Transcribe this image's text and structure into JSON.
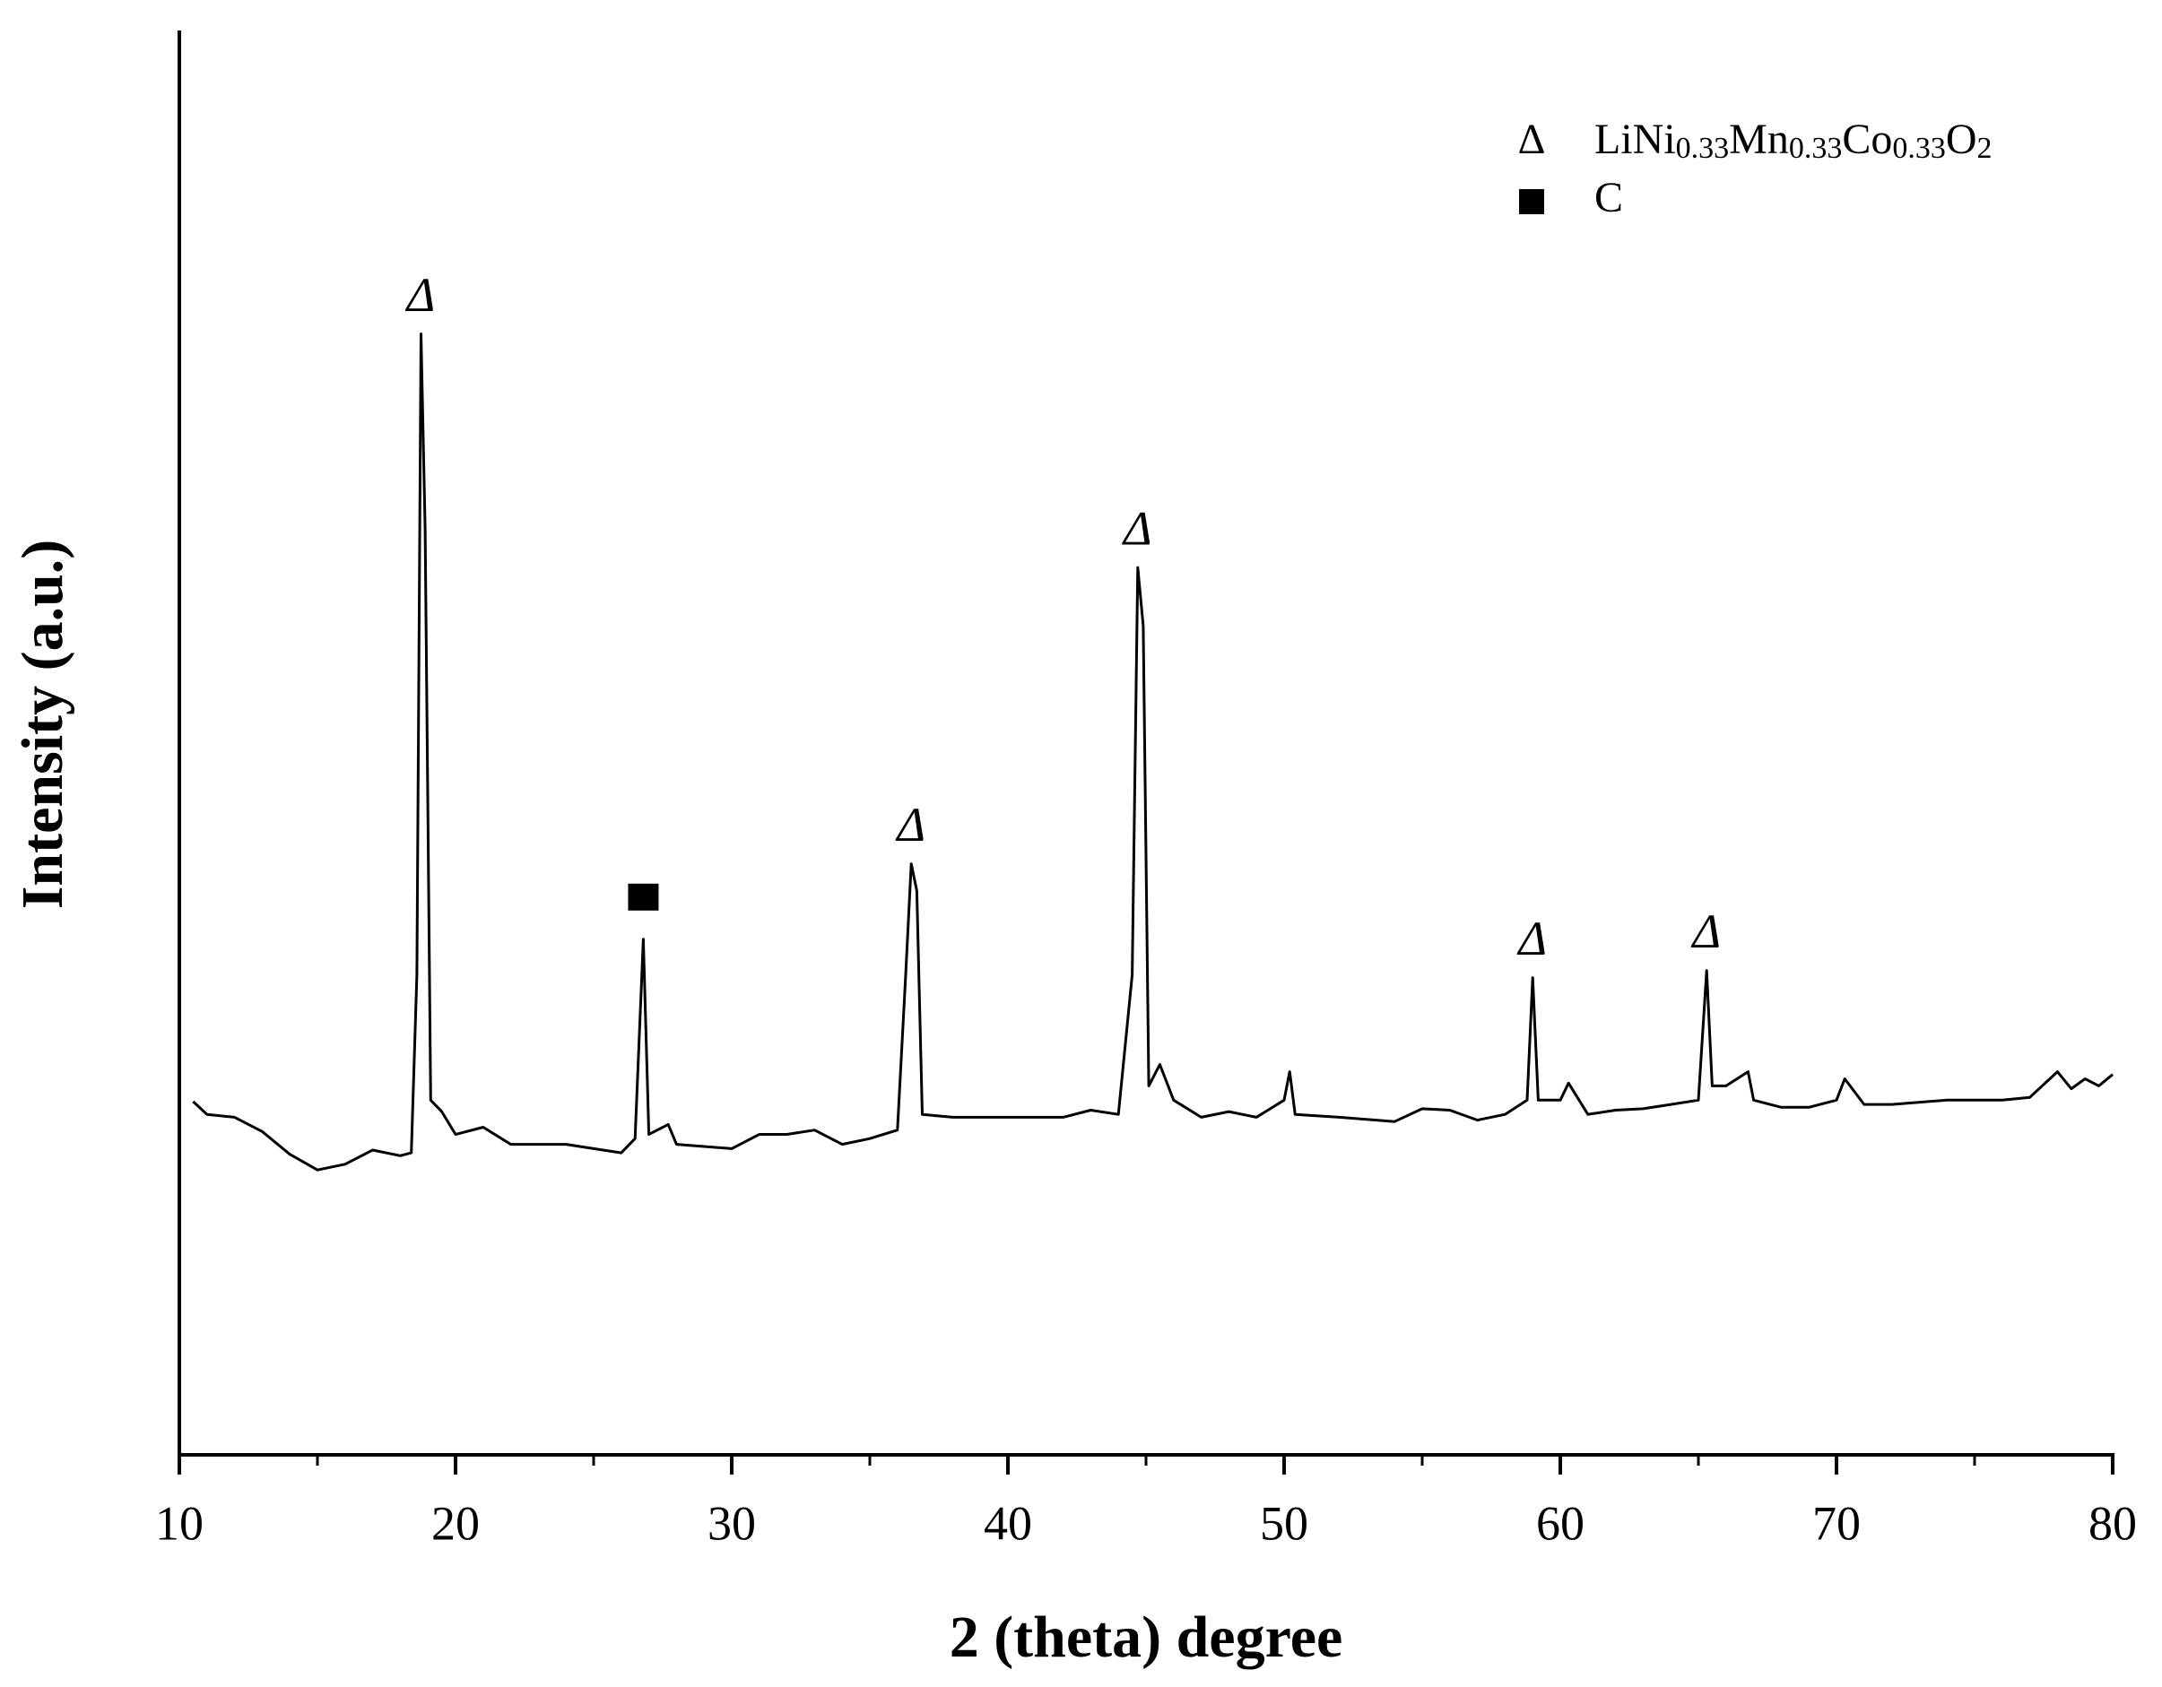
{
  "chart_data": {
    "type": "line",
    "xlabel": "2 (theta) degree",
    "ylabel": "Intensity (a.u.)",
    "xlim": [
      10,
      80
    ],
    "xticks": [
      10,
      20,
      30,
      40,
      50,
      60,
      70,
      80
    ],
    "xminorticks": [
      15,
      25,
      35,
      45,
      55,
      65,
      75
    ],
    "ylim": [
      0,
      100
    ],
    "color": "#000000",
    "x": [
      10.5,
      11,
      12,
      13,
      14,
      15,
      16,
      17,
      18,
      18.4,
      18.6,
      18.75,
      18.9,
      19.1,
      19.5,
      20,
      21,
      22,
      24,
      25,
      26,
      26.5,
      26.8,
      27.0,
      27.7,
      28,
      30,
      31,
      32,
      33,
      34,
      35,
      36,
      36.3,
      36.5,
      36.7,
      36.9,
      38,
      40,
      42,
      43,
      44,
      44.5,
      44.7,
      44.9,
      45.1,
      45.5,
      46,
      47,
      48,
      49,
      50,
      50.2,
      50.4,
      52,
      54,
      55,
      56,
      57,
      58,
      58.8,
      59.0,
      59.2,
      60,
      60.3,
      61,
      62,
      63,
      64,
      65,
      65.3,
      65.5,
      66,
      66.8,
      67,
      68,
      69,
      70,
      70.3,
      71,
      72,
      74,
      76,
      77,
      78,
      78.5,
      79,
      79.5,
      80
    ],
    "series": [
      {
        "values": [
          24.8,
          23.9,
          23.7,
          22.7,
          21.1,
          20.0,
          20.4,
          21.4,
          21.0,
          21.2,
          33.7,
          78.7,
          65.0,
          24.9,
          24.1,
          22.5,
          23.0,
          21.8,
          21.8,
          21.5,
          21.2,
          22.2,
          36.2,
          22.5,
          23.2,
          21.8,
          21.5,
          22.5,
          22.5,
          22.8,
          21.8,
          22.2,
          22.8,
          33.7,
          41.5,
          39.6,
          23.9,
          23.7,
          23.7,
          23.7,
          24.2,
          23.9,
          33.7,
          62.3,
          58.2,
          25.9,
          27.4,
          24.9,
          23.7,
          24.1,
          23.7,
          24.9,
          26.9,
          23.9,
          23.7,
          23.4,
          24.3,
          24.2,
          23.5,
          23.9,
          24.9,
          33.5,
          24.9,
          24.9,
          26.1,
          23.9,
          24.2,
          24.3,
          24.6,
          24.9,
          34.0,
          25.9,
          25.9,
          26.9,
          24.9,
          24.4,
          24.4,
          24.9,
          26.4,
          24.6,
          24.6,
          24.9,
          24.9,
          25.1,
          26.9,
          25.7,
          26.4,
          25.9,
          26.7
        ]
      }
    ],
    "phases": [
      {
        "symbol": "Δ",
        "name": "LiNi0.33Mn0.33Co0.33O2",
        "peaks": [
          18.75,
          36.5,
          44.7,
          59.0,
          65.3
        ]
      },
      {
        "marker": "square",
        "name": "C",
        "peaks": [
          26.8
        ]
      }
    ]
  }
}
